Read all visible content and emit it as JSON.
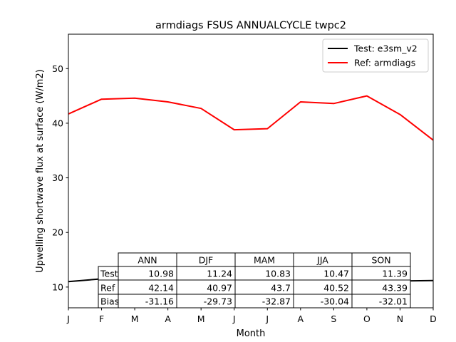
{
  "chart_data": {
    "type": "line",
    "title": "armdiags FSUS ANNUALCYCLE twpc2",
    "xlabel": "Month",
    "ylabel": "Upwelling shortwave flux at surface (W/m2)",
    "x_tick_labels": [
      "J",
      "F",
      "M",
      "A",
      "M",
      "J",
      "J",
      "A",
      "S",
      "O",
      "N",
      "D"
    ],
    "y_ticks": [
      10,
      20,
      30,
      40,
      50
    ],
    "xlim": [
      1,
      12
    ],
    "ylim": [
      6.2,
      56.3
    ],
    "grid": false,
    "legend_position": "top-right",
    "series": [
      {
        "name": "Test: e3sm_v2",
        "color": "#000000",
        "values": [
          11.0,
          11.5,
          11.7,
          10.9,
          9.7,
          9.3,
          10.6,
          11.4,
          11.4,
          11.6,
          11.1,
          11.2
        ]
      },
      {
        "name": "Ref: armdiags",
        "color": "#ff0000",
        "values": [
          41.7,
          44.4,
          44.6,
          43.9,
          42.7,
          38.8,
          39.0,
          43.9,
          43.6,
          45.0,
          41.6,
          36.9
        ]
      }
    ],
    "table": {
      "columns": [
        "ANN",
        "DJF",
        "MAM",
        "JJA",
        "SON"
      ],
      "rows": [
        {
          "label": "Test",
          "values": [
            "10.98",
            "11.24",
            "10.83",
            "10.47",
            "11.39"
          ]
        },
        {
          "label": "Ref",
          "values": [
            "42.14",
            "40.97",
            "43.7",
            "40.52",
            "43.39"
          ]
        },
        {
          "label": "Bias",
          "values": [
            "-31.16",
            "-29.73",
            "-32.87",
            "-30.04",
            "-32.01"
          ]
        }
      ]
    }
  }
}
